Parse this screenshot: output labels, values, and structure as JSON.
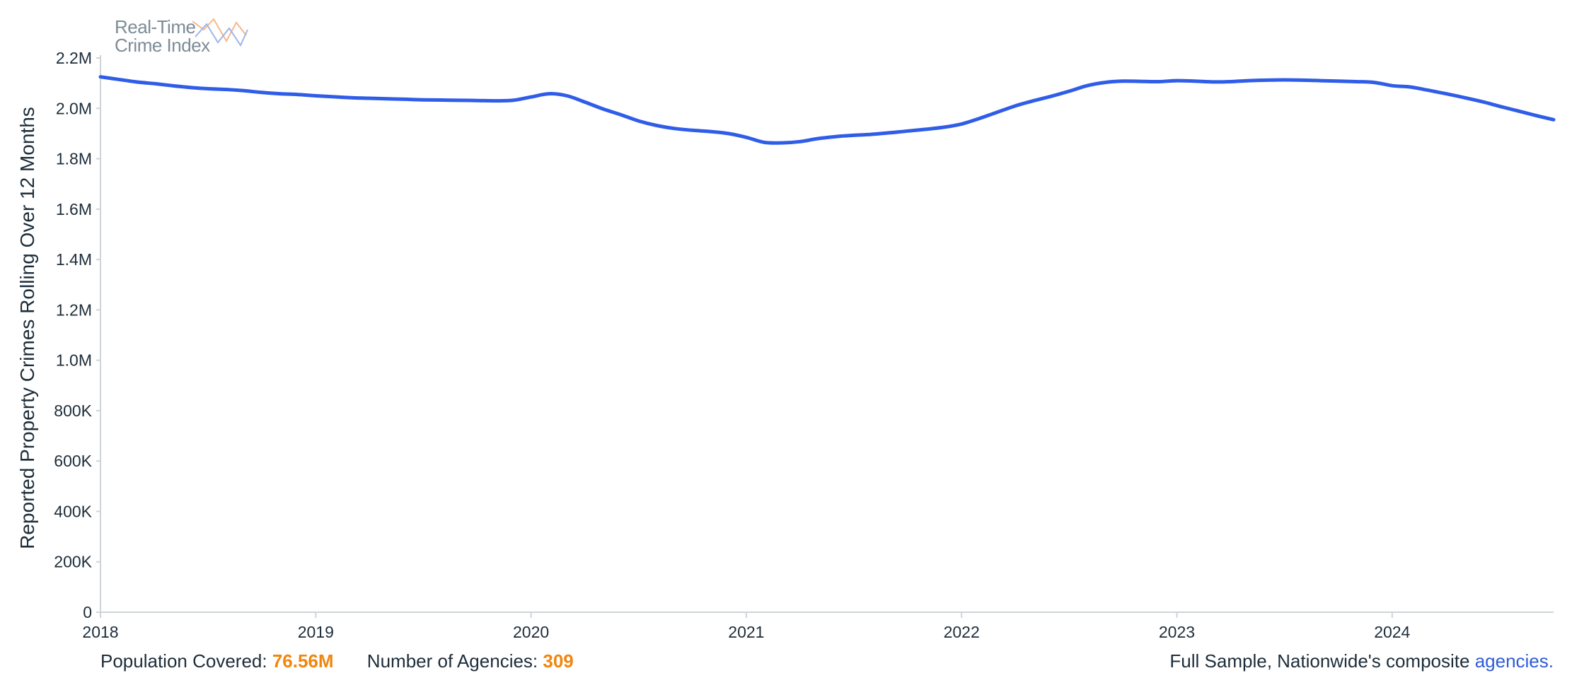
{
  "logo": {
    "line1": "Real-Time",
    "line2": "Crime Index"
  },
  "footer": {
    "population_label": "Population Covered: ",
    "population_value": "76.56M",
    "agencies_label": "Number of Agencies: ",
    "agencies_value": "309",
    "sample_text": "Full Sample, Nationwide's composite ",
    "agencies_link": "agencies."
  },
  "colors": {
    "line": "#2f5de8",
    "accent": "#f0860e",
    "link": "#2f5bd8",
    "axis": "#cfd4d8",
    "text": "#1d2d3a"
  },
  "chart_data": {
    "type": "line",
    "title": "",
    "xlabel": "",
    "ylabel": "Reported Property Crimes Rolling Over 12 Months",
    "x_ticks": [
      "2018",
      "2019",
      "2020",
      "2021",
      "2022",
      "2023",
      "2024"
    ],
    "y_ticks": [
      "0",
      "200K",
      "400K",
      "600K",
      "800K",
      "1.0M",
      "1.2M",
      "1.4M",
      "1.6M",
      "1.8M",
      "2.0M",
      "2.2M"
    ],
    "y_tick_values": [
      0,
      200000,
      400000,
      600000,
      800000,
      1000000,
      1200000,
      1400000,
      1600000,
      1800000,
      2000000,
      2200000
    ],
    "ylim": [
      0,
      2200000
    ],
    "xlim": [
      "2018-01",
      "2024-10"
    ],
    "grid": false,
    "series": [
      {
        "x": [
          "2018-01",
          "2018-02",
          "2018-03",
          "2018-04",
          "2018-05",
          "2018-06",
          "2018-07",
          "2018-08",
          "2018-09",
          "2018-10",
          "2018-11",
          "2018-12",
          "2019-01",
          "2019-02",
          "2019-03",
          "2019-04",
          "2019-05",
          "2019-06",
          "2019-07",
          "2019-08",
          "2019-09",
          "2019-10",
          "2019-11",
          "2019-12",
          "2020-01",
          "2020-02",
          "2020-03",
          "2020-04",
          "2020-05",
          "2020-06",
          "2020-07",
          "2020-08",
          "2020-09",
          "2020-10",
          "2020-11",
          "2020-12",
          "2021-01",
          "2021-02",
          "2021-03",
          "2021-04",
          "2021-05",
          "2021-06",
          "2021-07",
          "2021-08",
          "2021-09",
          "2021-10",
          "2021-11",
          "2021-12",
          "2022-01",
          "2022-02",
          "2022-03",
          "2022-04",
          "2022-05",
          "2022-06",
          "2022-07",
          "2022-08",
          "2022-09",
          "2022-10",
          "2022-11",
          "2022-12",
          "2023-01",
          "2023-02",
          "2023-03",
          "2023-04",
          "2023-05",
          "2023-06",
          "2023-07",
          "2023-08",
          "2023-09",
          "2023-10",
          "2023-11",
          "2023-12",
          "2024-01",
          "2024-02",
          "2024-03",
          "2024-04",
          "2024-05",
          "2024-06",
          "2024-07",
          "2024-08",
          "2024-09",
          "2024-10"
        ],
        "values": [
          2125000,
          2115000,
          2105000,
          2098000,
          2090000,
          2083000,
          2078000,
          2075000,
          2070000,
          2063000,
          2058000,
          2055000,
          2050000,
          2046000,
          2042000,
          2040000,
          2038000,
          2036000,
          2034000,
          2033000,
          2032000,
          2031000,
          2030000,
          2032000,
          2045000,
          2058000,
          2050000,
          2025000,
          1998000,
          1975000,
          1950000,
          1932000,
          1920000,
          1913000,
          1908000,
          1900000,
          1885000,
          1865000,
          1863000,
          1868000,
          1880000,
          1888000,
          1893000,
          1897000,
          1903000,
          1910000,
          1917000,
          1925000,
          1938000,
          1960000,
          1985000,
          2010000,
          2030000,
          2048000,
          2068000,
          2090000,
          2103000,
          2108000,
          2107000,
          2106000,
          2110000,
          2108000,
          2105000,
          2106000,
          2110000,
          2112000,
          2113000,
          2112000,
          2110000,
          2108000,
          2106000,
          2103000,
          2090000,
          2085000,
          2072000,
          2058000,
          2043000,
          2027000,
          2008000,
          1990000,
          1972000,
          1955000
        ]
      }
    ]
  }
}
